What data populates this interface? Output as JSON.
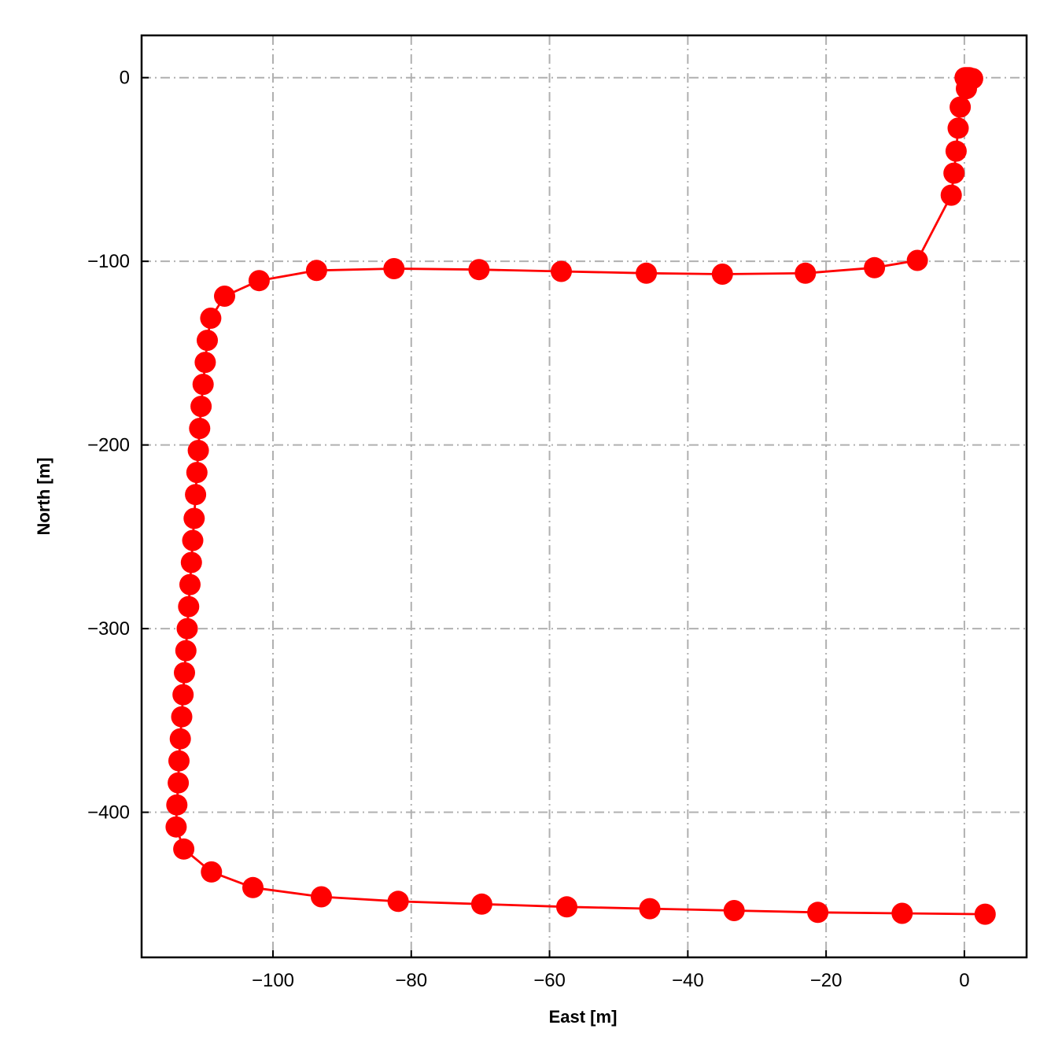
{
  "chart_data": {
    "type": "line",
    "title": "",
    "xlabel": "East [m]",
    "ylabel": "North [m]",
    "xlim": [
      -119,
      9
    ],
    "ylim": [
      -479,
      23
    ],
    "grid": true,
    "legend": "none",
    "colors": {
      "series": "#ff0000",
      "grid": "#b0b0b0",
      "frame": "#000000"
    },
    "xticks": [
      {
        "value": -100,
        "label": "−100"
      },
      {
        "value": -80,
        "label": "−80"
      },
      {
        "value": -60,
        "label": "−60"
      },
      {
        "value": -40,
        "label": "−40"
      },
      {
        "value": -20,
        "label": "−20"
      },
      {
        "value": 0,
        "label": "0"
      }
    ],
    "yticks": [
      {
        "value": 0,
        "label": "0"
      },
      {
        "value": -100,
        "label": "−100"
      },
      {
        "value": -200,
        "label": "−200"
      },
      {
        "value": -300,
        "label": "−300"
      },
      {
        "value": -400,
        "label": "−400"
      }
    ],
    "series": [
      {
        "marker": "circle",
        "points": [
          [
            0.1,
            0
          ],
          [
            0.4,
            0
          ],
          [
            0.7,
            0
          ],
          [
            1.2,
            -0.5
          ],
          [
            0.3,
            -6
          ],
          [
            -0.6,
            -16
          ],
          [
            -0.9,
            -27.5
          ],
          [
            -1.2,
            -40
          ],
          [
            -1.5,
            -52
          ],
          [
            -1.9,
            -64
          ],
          [
            -6.8,
            -99.5
          ],
          [
            -13.0,
            -103.5
          ],
          [
            -23.0,
            -106.5
          ],
          [
            -35.0,
            -107
          ],
          [
            -46.0,
            -106.5
          ],
          [
            -58.3,
            -105.5
          ],
          [
            -70.2,
            -104.5
          ],
          [
            -82.5,
            -104
          ],
          [
            -93.7,
            -105
          ],
          [
            -102.0,
            -110.5
          ],
          [
            -107.0,
            -119
          ],
          [
            -109.0,
            -131
          ],
          [
            -109.5,
            -143
          ],
          [
            -109.8,
            -155
          ],
          [
            -110.1,
            -167
          ],
          [
            -110.4,
            -179
          ],
          [
            -110.6,
            -191
          ],
          [
            -110.8,
            -203
          ],
          [
            -111.0,
            -215
          ],
          [
            -111.2,
            -227
          ],
          [
            -111.4,
            -240
          ],
          [
            -111.6,
            -252
          ],
          [
            -111.8,
            -264
          ],
          [
            -112.0,
            -276
          ],
          [
            -112.2,
            -288
          ],
          [
            -112.4,
            -300
          ],
          [
            -112.6,
            -312
          ],
          [
            -112.8,
            -324
          ],
          [
            -113.0,
            -336
          ],
          [
            -113.2,
            -348
          ],
          [
            -113.4,
            -360
          ],
          [
            -113.6,
            -372
          ],
          [
            -113.7,
            -384
          ],
          [
            -113.9,
            -396
          ],
          [
            -114.0,
            -408
          ],
          [
            -112.9,
            -420
          ],
          [
            -108.9,
            -432.5
          ],
          [
            -102.9,
            -441
          ],
          [
            -93.0,
            -446
          ],
          [
            -81.9,
            -448.5
          ],
          [
            -69.8,
            -450
          ],
          [
            -57.5,
            -451.5
          ],
          [
            -45.5,
            -452.5
          ],
          [
            -33.3,
            -453.5
          ],
          [
            -21.2,
            -454.5
          ],
          [
            -9.0,
            -455
          ],
          [
            3.0,
            -455.5
          ]
        ]
      }
    ]
  }
}
